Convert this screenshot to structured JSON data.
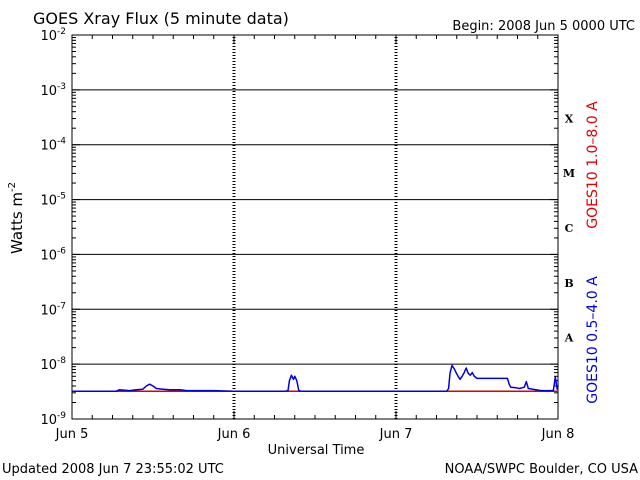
{
  "chart_data": {
    "type": "line",
    "title": "GOES Xray Flux (5 minute data)",
    "begin_label": "Begin:  2008 Jun 5 0000 UTC",
    "xlabel": "Universal Time",
    "ylabel_main": "Watts m",
    "ylabel_exp": "-2",
    "updated_label": "Updated 2008 Jun  7 23:55:02 UTC",
    "source_label": "NOAA/SWPC Boulder, CO USA",
    "y_scale": "log",
    "ylim": [
      1e-09,
      0.01
    ],
    "xlim_hours": [
      0,
      72
    ],
    "grid": true,
    "y_ticks": [
      {
        "exp": -9,
        "base": "10",
        "sup": "-9"
      },
      {
        "exp": -8,
        "base": "10",
        "sup": "-8"
      },
      {
        "exp": -7,
        "base": "10",
        "sup": "-7"
      },
      {
        "exp": -6,
        "base": "10",
        "sup": "-6"
      },
      {
        "exp": -5,
        "base": "10",
        "sup": "-5"
      },
      {
        "exp": -4,
        "base": "10",
        "sup": "-4"
      },
      {
        "exp": -3,
        "base": "10",
        "sup": "-3"
      },
      {
        "exp": -2,
        "base": "10",
        "sup": "-2"
      }
    ],
    "x_ticks": [
      {
        "hour": 0,
        "label": "Jun 5"
      },
      {
        "hour": 24,
        "label": "Jun 6"
      },
      {
        "hour": 48,
        "label": "Jun 7"
      },
      {
        "hour": 72,
        "label": "Jun 8"
      }
    ],
    "flare_classes": [
      {
        "label": "X",
        "exp": -4
      },
      {
        "label": "M",
        "exp": -5
      },
      {
        "label": "C",
        "exp": -6
      },
      {
        "label": "B",
        "exp": -7
      },
      {
        "label": "A",
        "exp": -8
      }
    ],
    "series": [
      {
        "name": "GOES10 1.0–8.0 A",
        "color": "#e00000",
        "points": [
          [
            0,
            3.2e-09
          ],
          [
            72,
            3.2e-09
          ]
        ]
      },
      {
        "name": "GOES10 0.5–4.0 A",
        "color": "#0000e0",
        "points": [
          [
            0,
            3.2e-09
          ],
          [
            6.5,
            3.2e-09
          ],
          [
            7.0,
            3.4e-09
          ],
          [
            8.5,
            3.3e-09
          ],
          [
            9.5,
            3.4e-09
          ],
          [
            10.5,
            3.5e-09
          ],
          [
            11.0,
            4e-09
          ],
          [
            11.5,
            4.3e-09
          ],
          [
            12.0,
            4e-09
          ],
          [
            12.5,
            3.6e-09
          ],
          [
            13.5,
            3.5e-09
          ],
          [
            14.5,
            3.4e-09
          ],
          [
            16.0,
            3.4e-09
          ],
          [
            17.0,
            3.3e-09
          ],
          [
            21.0,
            3.3e-09
          ],
          [
            24.0,
            3.2e-09
          ],
          [
            30.5,
            3.2e-09
          ],
          [
            31.5,
            3.2e-09
          ],
          [
            32.0,
            3.3e-09
          ],
          [
            32.2,
            5e-09
          ],
          [
            32.5,
            6.3e-09
          ],
          [
            32.8,
            5.3e-09
          ],
          [
            33.0,
            6e-09
          ],
          [
            33.3,
            5e-09
          ],
          [
            33.6,
            3.3e-09
          ],
          [
            34.0,
            3.2e-09
          ],
          [
            48.0,
            3.2e-09
          ],
          [
            55.5,
            3.2e-09
          ],
          [
            55.8,
            3.6e-09
          ],
          [
            56.0,
            6.8e-09
          ],
          [
            56.3,
            9.5e-09
          ],
          [
            56.6,
            8.3e-09
          ],
          [
            56.9,
            7e-09
          ],
          [
            57.2,
            6e-09
          ],
          [
            57.5,
            5.3e-09
          ],
          [
            57.8,
            6e-09
          ],
          [
            58.1,
            7e-09
          ],
          [
            58.4,
            8.5e-09
          ],
          [
            58.7,
            6.8e-09
          ],
          [
            59.0,
            6.3e-09
          ],
          [
            59.3,
            7e-09
          ],
          [
            59.6,
            6e-09
          ],
          [
            60.0,
            5.5e-09
          ],
          [
            61.0,
            5.5e-09
          ],
          [
            64.5,
            5.5e-09
          ],
          [
            64.8,
            4.2e-09
          ],
          [
            65.0,
            3.8e-09
          ],
          [
            65.8,
            3.7e-09
          ],
          [
            66.3,
            3.6e-09
          ],
          [
            67.0,
            3.8e-09
          ],
          [
            67.3,
            4.8e-09
          ],
          [
            67.6,
            3.6e-09
          ],
          [
            69.5,
            3.3e-09
          ],
          [
            70.5,
            3.3e-09
          ],
          [
            71.3,
            3.3e-09
          ],
          [
            71.6,
            5.8e-09
          ],
          [
            71.9,
            3.4e-09
          ]
        ]
      }
    ]
  }
}
